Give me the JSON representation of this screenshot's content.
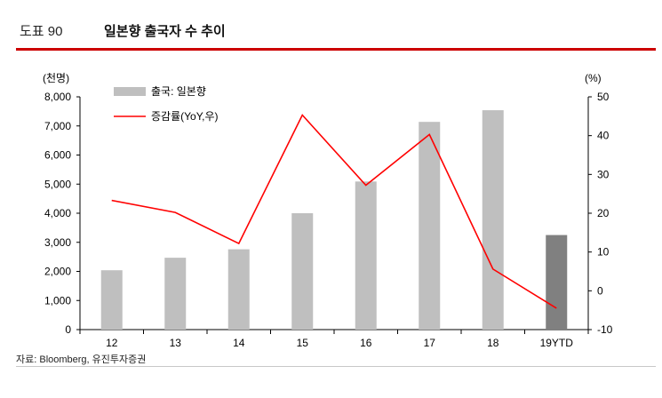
{
  "header": {
    "figure_label": "도표 90",
    "title": "일본향 출국자 수 추이"
  },
  "source": "자료: Bloomberg, 유진투자증권",
  "chart_data": {
    "type": "bar",
    "categories": [
      "12",
      "13",
      "14",
      "15",
      "16",
      "17",
      "18",
      "19YTD"
    ],
    "left_axis": {
      "unit": "(천명)",
      "min": 0,
      "max": 8000,
      "step": 1000,
      "ticks": [
        "0",
        "1,000",
        "2,000",
        "3,000",
        "4,000",
        "5,000",
        "6,000",
        "7,000",
        "8,000"
      ]
    },
    "right_axis": {
      "unit": "(%)",
      "min": -10,
      "max": 50,
      "step": 10,
      "ticks": [
        "-10",
        "0",
        "10",
        "20",
        "30",
        "40",
        "50"
      ]
    },
    "series": [
      {
        "name": "출국: 일본향",
        "kind": "bar",
        "axis": "left",
        "values": [
          2040,
          2470,
          2760,
          4000,
          5090,
          7140,
          7540,
          3250
        ],
        "color": "#bfbfbf",
        "highlight_last_color": "#808080"
      },
      {
        "name": "증감률(YoY,우)",
        "kind": "line",
        "axis": "right",
        "values": [
          23.3,
          20.2,
          12.2,
          45.3,
          27.2,
          40.3,
          5.6,
          -4.5
        ],
        "color": "#ff0000"
      }
    ],
    "legend_position": "top-left",
    "grid": false
  }
}
